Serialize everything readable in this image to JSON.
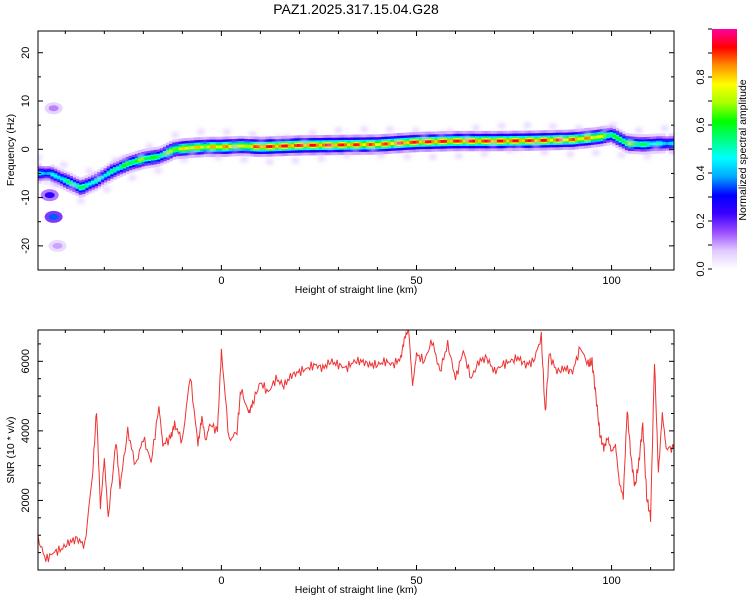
{
  "title": "PAZ1.2025.317.15.04.G28",
  "chart_data": [
    {
      "type": "heatmap",
      "title": "PAZ1.2025.317.15.04.G28",
      "xlabel": "Height of straight line (km)",
      "ylabel": "Frequency (Hz)",
      "xlim": [
        -47,
        116
      ],
      "ylim": [
        -25,
        24.5
      ],
      "xticks": [
        "0",
        "50",
        "100"
      ],
      "yticks": [
        "-20",
        "-10",
        "0",
        "10",
        "20"
      ],
      "colorbar": {
        "label": "Normalized spectral amplitude",
        "range": [
          0,
          1
        ],
        "ticks": [
          "0.0",
          "0.2",
          "0.4",
          "0.6",
          "0.8"
        ],
        "colors": [
          "#ffffff",
          "#e0c8ff",
          "#9b4dff",
          "#3a00ff",
          "#0000ff",
          "#00a8ff",
          "#00ffff",
          "#00ff80",
          "#00ff00",
          "#a8ff00",
          "#ffff00",
          "#ff9000",
          "#ff0000",
          "#ff00a0"
        ]
      },
      "ridge": {
        "x": [
          -44,
          -40,
          -36,
          -32,
          -28,
          -24,
          -20,
          -16,
          -12,
          -8,
          -4,
          0,
          5,
          10,
          20,
          30,
          40,
          50,
          60,
          70,
          80,
          90,
          96,
          100,
          104,
          108,
          112,
          116
        ],
        "freq": [
          -5,
          -6.5,
          -8,
          -6.5,
          -4.5,
          -3,
          -2,
          -1.5,
          0,
          0.3,
          0.5,
          0.5,
          0.7,
          0.5,
          0.8,
          0.9,
          1,
          1.5,
          1.7,
          1.7,
          1.8,
          2,
          2.5,
          3,
          1.2,
          1,
          1.2,
          1.2
        ],
        "amplitude": [
          0.45,
          0.55,
          0.6,
          0.5,
          0.55,
          0.65,
          0.7,
          0.6,
          0.75,
          0.85,
          0.8,
          0.9,
          0.75,
          0.95,
          0.95,
          0.95,
          0.9,
          0.95,
          0.95,
          0.95,
          0.95,
          0.9,
          0.85,
          0.6,
          0.7,
          0.6,
          0.5,
          0.45
        ]
      },
      "blobs": [
        {
          "x": -43,
          "freq": 8.5,
          "amplitude": 0.12
        },
        {
          "x": -44,
          "freq": -9.5,
          "amplitude": 0.25
        },
        {
          "x": -43,
          "freq": -14,
          "amplitude": 0.35
        },
        {
          "x": -42,
          "freq": -20,
          "amplitude": 0.1
        }
      ]
    },
    {
      "type": "line",
      "xlabel": "Height of straight line (km)",
      "ylabel": "SNR (10 * v/v)",
      "xlim": [
        -47,
        116
      ],
      "ylim": [
        0,
        6900
      ],
      "xticks": [
        "0",
        "50",
        "100"
      ],
      "yticks": [
        "2000",
        "4000",
        "6000"
      ],
      "color": "#ee3333",
      "series": [
        {
          "name": "SNR",
          "x": [
            -47,
            -45,
            -43,
            -41,
            -39,
            -37,
            -35,
            -33,
            -32,
            -31,
            -30,
            -29,
            -27,
            -26,
            -24,
            -22,
            -20,
            -18,
            -16,
            -15,
            -13,
            -12,
            -10,
            -8,
            -6,
            -5,
            -4,
            -3,
            -1,
            0,
            2,
            4,
            5,
            7,
            8,
            10,
            12,
            14,
            16,
            18,
            20,
            22,
            24,
            26,
            28,
            30,
            32,
            34,
            36,
            38,
            40,
            42,
            44,
            46,
            47,
            48,
            49,
            50,
            52,
            54,
            56,
            58,
            60,
            62,
            64,
            66,
            68,
            70,
            72,
            74,
            76,
            78,
            80,
            82,
            83,
            84,
            86,
            88,
            90,
            92,
            94,
            95,
            96,
            97,
            98,
            99,
            100,
            101,
            102,
            103,
            104,
            105,
            106,
            107,
            108,
            109,
            110,
            111,
            112,
            113,
            114,
            116
          ],
          "y": [
            900,
            300,
            500,
            600,
            800,
            900,
            700,
            2800,
            4600,
            1800,
            3200,
            1500,
            3700,
            2400,
            4000,
            3000,
            3800,
            3100,
            4700,
            3600,
            3800,
            4200,
            3700,
            5600,
            3600,
            4400,
            3700,
            4200,
            4000,
            6300,
            3700,
            4000,
            5200,
            4500,
            4800,
            5400,
            5100,
            5500,
            5300,
            5600,
            5700,
            5800,
            5900,
            5800,
            6000,
            5900,
            5800,
            6000,
            6000,
            5900,
            5900,
            6000,
            5900,
            6100,
            6700,
            6900,
            5300,
            6200,
            6000,
            6600,
            5700,
            6500,
            5500,
            6300,
            5500,
            6000,
            6100,
            5700,
            5900,
            6000,
            6100,
            5900,
            6000,
            6700,
            4500,
            6200,
            5700,
            5800,
            5700,
            6400,
            5900,
            6000,
            5000,
            3900,
            3500,
            3800,
            3400,
            3600,
            2500,
            2100,
            4600,
            3200,
            2400,
            3100,
            4200,
            2100,
            1500,
            6000,
            2800,
            4500,
            3500,
            3500
          ]
        }
      ]
    }
  ]
}
